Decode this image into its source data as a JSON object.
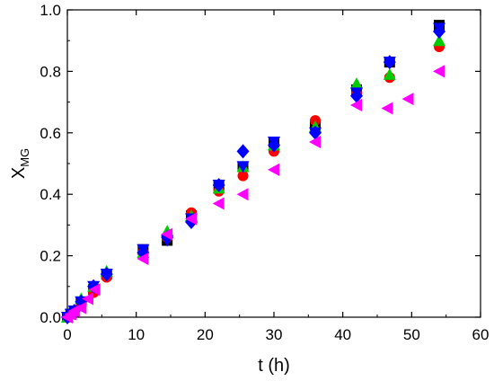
{
  "chart_data": {
    "type": "scatter",
    "xlabel": "t (h)",
    "ylabel": {
      "main": "X",
      "sub": "MG"
    },
    "xlim": [
      0,
      60
    ],
    "ylim": [
      0,
      1.0
    ],
    "x_ticks": [
      0,
      10,
      20,
      30,
      40,
      50,
      60
    ],
    "y_ticks": [
      0.0,
      0.2,
      0.4,
      0.6,
      0.8,
      1.0
    ],
    "x_tick_labels": [
      "0",
      "10",
      "20",
      "30",
      "40",
      "50",
      "60"
    ],
    "y_tick_labels": [
      "0.0",
      "0.2",
      "0.4",
      "0.6",
      "0.8",
      "1.0"
    ],
    "grid": false,
    "legend": "none",
    "series": [
      {
        "marker": "square",
        "color": "#000000",
        "points": [
          [
            0,
            0
          ],
          [
            0.5,
            0.01
          ],
          [
            1,
            0.02
          ],
          [
            2,
            0.05
          ],
          [
            3.8,
            0.09
          ],
          [
            5.7,
            0.14
          ],
          [
            11,
            0.22
          ],
          [
            14.5,
            0.25
          ],
          [
            18,
            0.33
          ],
          [
            22,
            0.43
          ],
          [
            25.5,
            0.49
          ],
          [
            30,
            0.57
          ],
          [
            36,
            0.62
          ],
          [
            42,
            0.74
          ],
          [
            46.8,
            0.83
          ],
          [
            54,
            0.95
          ]
        ]
      },
      {
        "marker": "circle",
        "color": "#ff0000",
        "points": [
          [
            0,
            0
          ],
          [
            0.5,
            0.01
          ],
          [
            1,
            0.02
          ],
          [
            2,
            0.04
          ],
          [
            3.8,
            0.08
          ],
          [
            5.7,
            0.13
          ],
          [
            11,
            0.21
          ],
          [
            14.5,
            0.26
          ],
          [
            18,
            0.34
          ],
          [
            22,
            0.41
          ],
          [
            25.5,
            0.46
          ],
          [
            30,
            0.54
          ],
          [
            36,
            0.64
          ],
          [
            42,
            0.73
          ],
          [
            46.8,
            0.78
          ],
          [
            54,
            0.88
          ]
        ]
      },
      {
        "marker": "triangle-up",
        "color": "#00cc00",
        "points": [
          [
            0,
            0
          ],
          [
            0.5,
            0.01
          ],
          [
            1,
            0.02
          ],
          [
            2,
            0.06
          ],
          [
            3.8,
            0.1
          ],
          [
            5.7,
            0.15
          ],
          [
            11,
            0.21
          ],
          [
            14.5,
            0.28
          ],
          [
            18,
            0.33
          ],
          [
            22,
            0.42
          ],
          [
            25.5,
            0.49
          ],
          [
            30,
            0.56
          ],
          [
            36,
            0.62
          ],
          [
            42,
            0.76
          ],
          [
            46.8,
            0.79
          ],
          [
            54,
            0.9
          ]
        ]
      },
      {
        "marker": "triangle-down",
        "color": "#0000ff",
        "points": [
          [
            0,
            0
          ],
          [
            0.5,
            0.01
          ],
          [
            1,
            0.02
          ],
          [
            2,
            0.05
          ],
          [
            3.8,
            0.1
          ],
          [
            5.7,
            0.14
          ],
          [
            11,
            0.22
          ],
          [
            14.5,
            0.25
          ],
          [
            18,
            0.32
          ],
          [
            22,
            0.43
          ],
          [
            25.5,
            0.49
          ],
          [
            30,
            0.57
          ],
          [
            36,
            0.6
          ],
          [
            42,
            0.73
          ],
          [
            46.8,
            0.83
          ],
          [
            54,
            0.94
          ]
        ]
      },
      {
        "marker": "diamond",
        "color": "#0000ff",
        "points": [
          [
            0,
            0
          ],
          [
            0.5,
            0.01
          ],
          [
            1,
            0.02
          ],
          [
            2,
            0.05
          ],
          [
            3.8,
            0.1
          ],
          [
            5.7,
            0.14
          ],
          [
            11,
            0.21
          ],
          [
            14.5,
            0.26
          ],
          [
            18,
            0.31
          ],
          [
            22,
            0.43
          ],
          [
            25.5,
            0.54
          ],
          [
            30,
            0.56
          ],
          [
            36,
            0.6
          ],
          [
            42,
            0.72
          ],
          [
            46.8,
            0.83
          ],
          [
            54,
            0.93
          ]
        ]
      },
      {
        "marker": "triangle-left",
        "color": "#ff00ff",
        "points": [
          [
            0,
            0
          ],
          [
            0.5,
            0.01
          ],
          [
            1,
            0.02
          ],
          [
            2,
            0.03
          ],
          [
            3,
            0.06
          ],
          [
            4,
            0.09
          ],
          [
            11,
            0.19
          ],
          [
            14.5,
            0.27
          ],
          [
            18,
            0.32
          ],
          [
            22,
            0.37
          ],
          [
            25.5,
            0.4
          ],
          [
            30,
            0.48
          ],
          [
            36,
            0.57
          ],
          [
            42,
            0.69
          ],
          [
            46.5,
            0.68
          ],
          [
            49.5,
            0.71
          ],
          [
            54,
            0.8
          ]
        ]
      }
    ]
  }
}
